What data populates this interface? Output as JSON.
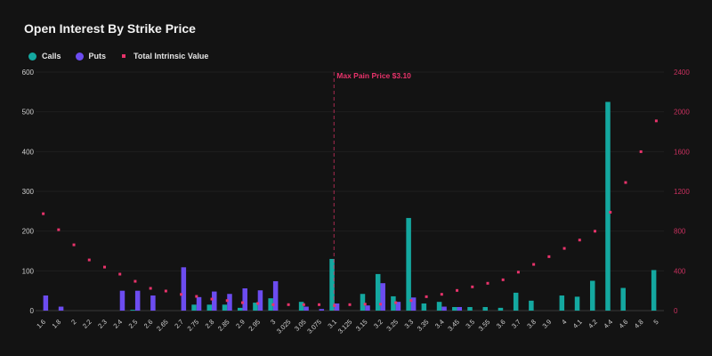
{
  "header": {
    "title": "Open Interest By Strike Price"
  },
  "legend": [
    {
      "label": "Calls",
      "color": "#14a8a0"
    },
    {
      "label": "Puts",
      "color": "#6c4cf0"
    },
    {
      "label": "Total Intrinsic Value",
      "color": "#e8336b"
    }
  ],
  "annotation": {
    "label": "Max Pain Price $3.10",
    "strike": "3.1",
    "color": "#e8336b"
  },
  "chart_data": {
    "type": "bar",
    "title": "Open Interest By Strike Price",
    "xlabel": "",
    "ylabel": "",
    "y_left_ticks": [
      0,
      100,
      200,
      300,
      400,
      500,
      600
    ],
    "y_right_ticks": [
      0,
      400,
      800,
      1200,
      1600,
      2000,
      2400
    ],
    "ylim": [
      0,
      600
    ],
    "ylim_right": [
      0,
      2400
    ],
    "grid": true,
    "legend_position": "top-left",
    "categories": [
      "1.6",
      "1.8",
      "2",
      "2.2",
      "2.3",
      "2.4",
      "2.5",
      "2.6",
      "2.65",
      "2.7",
      "2.75",
      "2.8",
      "2.85",
      "2.9",
      "2.95",
      "3",
      "3.025",
      "3.05",
      "3.075",
      "3.1",
      "3.125",
      "3.15",
      "3.2",
      "3.25",
      "3.3",
      "3.35",
      "3.4",
      "3.45",
      "3.5",
      "3.55",
      "3.6",
      "3.7",
      "3.8",
      "3.9",
      "4",
      "4.1",
      "4.2",
      "4.4",
      "4.6",
      "4.8",
      "5"
    ],
    "series": [
      {
        "name": "Calls",
        "axis": "left",
        "type": "bar",
        "values": [
          0,
          0,
          0,
          0,
          0,
          0,
          2,
          0,
          0,
          0,
          15,
          15,
          15,
          7,
          20,
          31,
          0,
          22,
          0,
          130,
          0,
          42,
          92,
          36,
          233,
          18,
          22,
          9,
          9,
          9,
          7,
          45,
          25,
          0,
          38,
          35,
          75,
          525,
          57,
          0,
          102
        ]
      },
      {
        "name": "Puts",
        "axis": "left",
        "type": "bar",
        "values": [
          38,
          10,
          0,
          0,
          0,
          50,
          50,
          38,
          0,
          109,
          34,
          48,
          42,
          56,
          51,
          74,
          0,
          10,
          4,
          18,
          0,
          13,
          69,
          22,
          33,
          0,
          10,
          9,
          0,
          0,
          0,
          0,
          0,
          0,
          0,
          0,
          0,
          0,
          0,
          0,
          0
        ]
      },
      {
        "name": "Total Intrinsic Value",
        "axis": "right",
        "type": "scatter",
        "values": [
          975,
          814,
          662,
          510,
          438,
          367,
          295,
          224,
          197,
          163,
          143,
          116,
          101,
          80,
          72,
          60,
          60,
          60,
          60,
          50,
          60,
          65,
          65,
          80,
          101,
          140,
          164,
          203,
          239,
          275,
          310,
          387,
          465,
          543,
          626,
          710,
          799,
          990,
          1289,
          1599,
          1909
        ]
      }
    ]
  }
}
